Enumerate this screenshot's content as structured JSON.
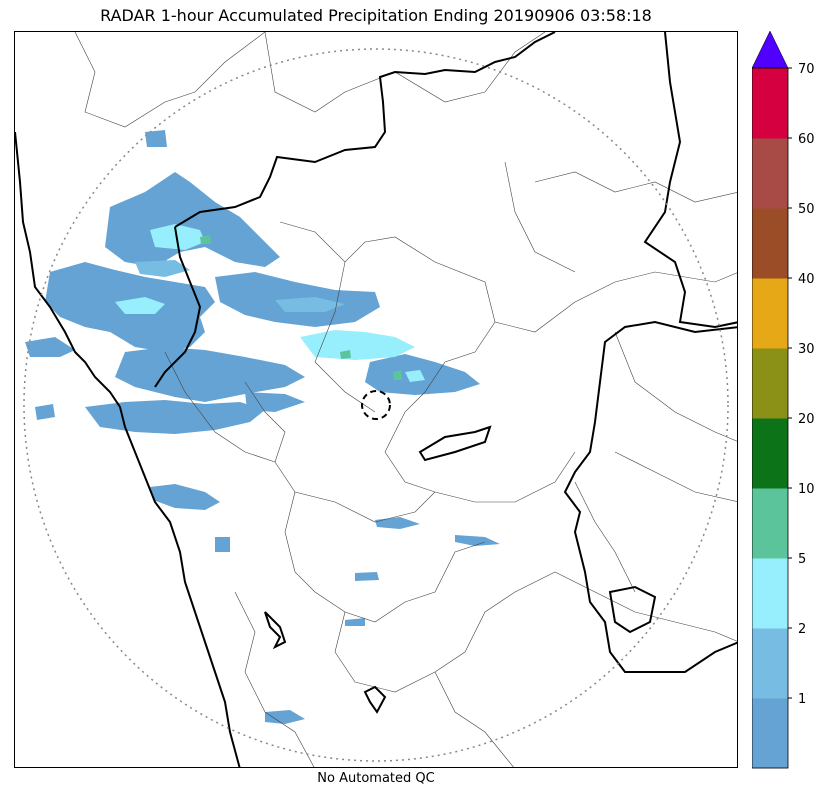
{
  "title": "RADAR 1-hour Accumulated Precipitation Ending 20190906 03:58:18",
  "footer": "No Automated QC",
  "map": {
    "range_ring": "dotted",
    "radar_site_marker": "dashed circle",
    "colors": {
      "coastline": "#000000",
      "state_border": "#000000",
      "district_border": "#444444",
      "range_ring": "#888888"
    }
  },
  "colorbar": {
    "tick_labels": [
      "1",
      "2",
      "5",
      "10",
      "20",
      "30",
      "40",
      "50",
      "60",
      "70"
    ],
    "bins": [
      {
        "label": "0-1",
        "color": "#64a3d4"
      },
      {
        "label": "1-2",
        "color": "#77bde3"
      },
      {
        "label": "2-5",
        "color": "#97eefc"
      },
      {
        "label": "5-10",
        "color": "#5cc49a"
      },
      {
        "label": "10-20",
        "color": "#0d7318"
      },
      {
        "label": "20-30",
        "color": "#8a9116"
      },
      {
        "label": "30-40",
        "color": "#e6a817"
      },
      {
        "label": "40-50",
        "color": "#9b4d28"
      },
      {
        "label": "50-60",
        "color": "#a84a45"
      },
      {
        "label": "60-70",
        "color": "#d4003f"
      }
    ],
    "extend_color": "#4f00ff",
    "extend": "max"
  }
}
